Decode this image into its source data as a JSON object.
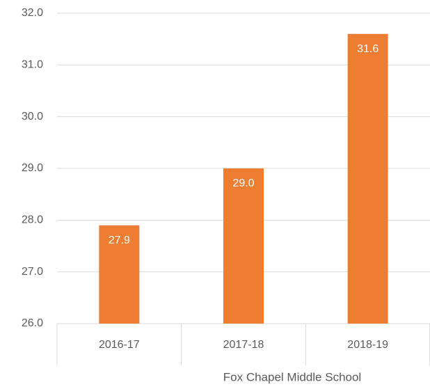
{
  "chart_data": {
    "type": "bar",
    "x_label": "Fox Chapel Middle School",
    "categories": [
      "2016-17",
      "2017-18",
      "2018-19"
    ],
    "values": [
      27.9,
      29.0,
      31.6
    ],
    "value_labels": [
      "27.9",
      "29.0",
      "31.6"
    ],
    "color": "#ed7d31",
    "ylim": [
      26,
      32
    ],
    "yticks": [
      {
        "value": 26,
        "label": "26.0"
      },
      {
        "value": 27,
        "label": "27.0"
      },
      {
        "value": 28,
        "label": "28.0"
      },
      {
        "value": 29,
        "label": "29.0"
      },
      {
        "value": 30,
        "label": "30.0"
      },
      {
        "value": 31,
        "label": "31.0"
      },
      {
        "value": 32,
        "label": "32.0"
      }
    ],
    "grid": true
  }
}
